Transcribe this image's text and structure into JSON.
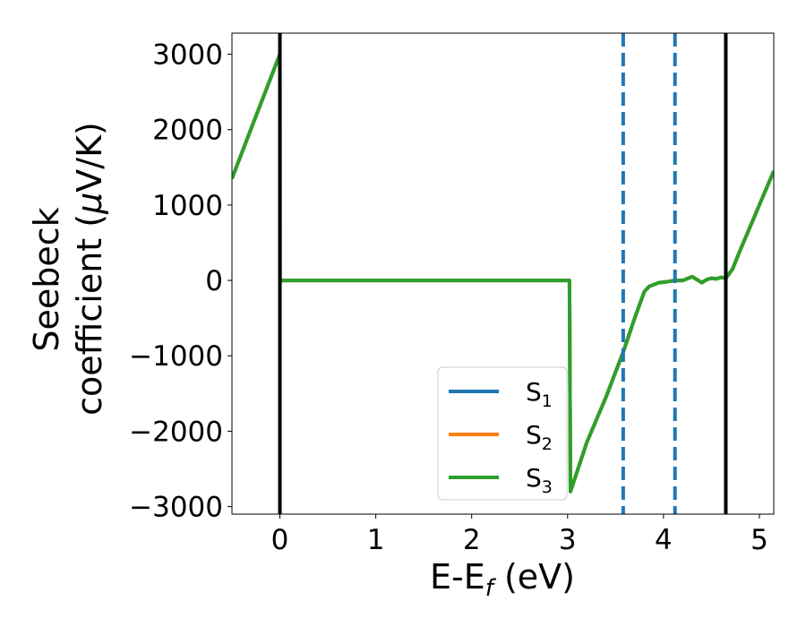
{
  "chart_data": {
    "type": "line",
    "xlabel": {
      "main": "E-E",
      "sub": "f",
      "tail": " (eV)"
    },
    "ylabel": {
      "line1": "Seebeck",
      "line2_pre": "coefficient  (",
      "mu": "μ",
      "line2_post": "V/K)"
    },
    "xlim": [
      -0.5,
      5.15
    ],
    "ylim": [
      -3100,
      3280
    ],
    "xticks": [
      0,
      1,
      2,
      3,
      4,
      5
    ],
    "xtick_labels": [
      "0",
      "1",
      "2",
      "3",
      "4",
      "5"
    ],
    "yticks": [
      -3000,
      -2000,
      -1000,
      0,
      1000,
      2000,
      3000
    ],
    "ytick_labels": [
      "−3000",
      "−2000",
      "−1000",
      "0",
      "1000",
      "2000",
      "3000"
    ],
    "vlines_solid": [
      0.0,
      4.65
    ],
    "vlines_dashed": [
      3.58,
      4.12
    ],
    "legend_position": "lower-center",
    "series": [
      {
        "name": "S",
        "sub": "1",
        "color": "#1f77b4"
      },
      {
        "name": "S",
        "sub": "2",
        "color": "#ff7f0e"
      },
      {
        "name": "S",
        "sub": "3",
        "color": "#2ca02c"
      }
    ],
    "x": [
      -0.5,
      -0.25,
      0.0,
      0.001,
      0.5,
      1.0,
      1.5,
      2.0,
      2.5,
      3.0,
      3.02,
      3.03,
      3.2,
      3.4,
      3.58,
      3.7,
      3.8,
      3.85,
      3.95,
      4.05,
      4.12,
      4.2,
      4.3,
      4.35,
      4.4,
      4.45,
      4.5,
      4.55,
      4.6,
      4.65,
      4.72,
      4.8,
      4.9,
      5.0,
      5.15
    ],
    "y": [
      1350,
      2180,
      3000,
      0,
      0,
      0,
      0,
      0,
      0,
      0,
      0,
      -2800,
      -2150,
      -1550,
      -950,
      -500,
      -150,
      -80,
      -30,
      -15,
      0,
      0,
      50,
      10,
      -30,
      10,
      30,
      20,
      40,
      30,
      150,
      400,
      700,
      1000,
      1450
    ]
  }
}
